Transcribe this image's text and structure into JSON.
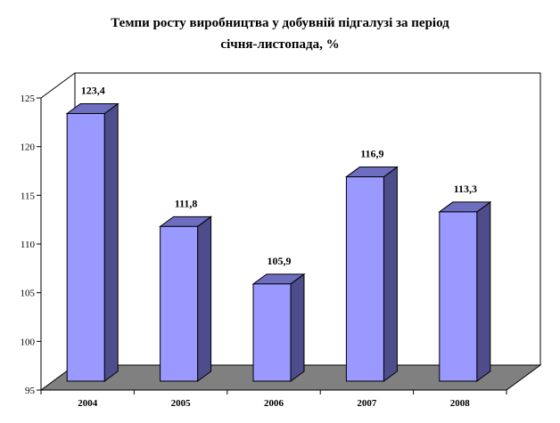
{
  "title_lines": [
    "Темпи росту виробництва у добувній підгалузі за період",
    "січня-листопада, %"
  ],
  "chart_data": {
    "type": "bar",
    "title": "Темпи росту виробництва у добувній підгалузі за період січня-листопада, %",
    "categories": [
      "2004",
      "2005",
      "2006",
      "2007",
      "2008"
    ],
    "values": [
      123.4,
      111.8,
      105.9,
      116.9,
      113.3
    ],
    "data_labels": [
      "123,4",
      "111,8",
      "105,9",
      "116,9",
      "113,3"
    ],
    "ylim": [
      95,
      125
    ],
    "yticks": [
      95,
      100,
      105,
      110,
      115,
      120,
      125
    ],
    "xlabel": "",
    "ylabel": "",
    "grid": false,
    "three_d": true,
    "colors": {
      "bar_front": "#9999ff",
      "bar_side": "#4d4d8c",
      "bar_top": "#6e6ec0",
      "floor": "#808080",
      "wall_line": "#000000"
    }
  }
}
